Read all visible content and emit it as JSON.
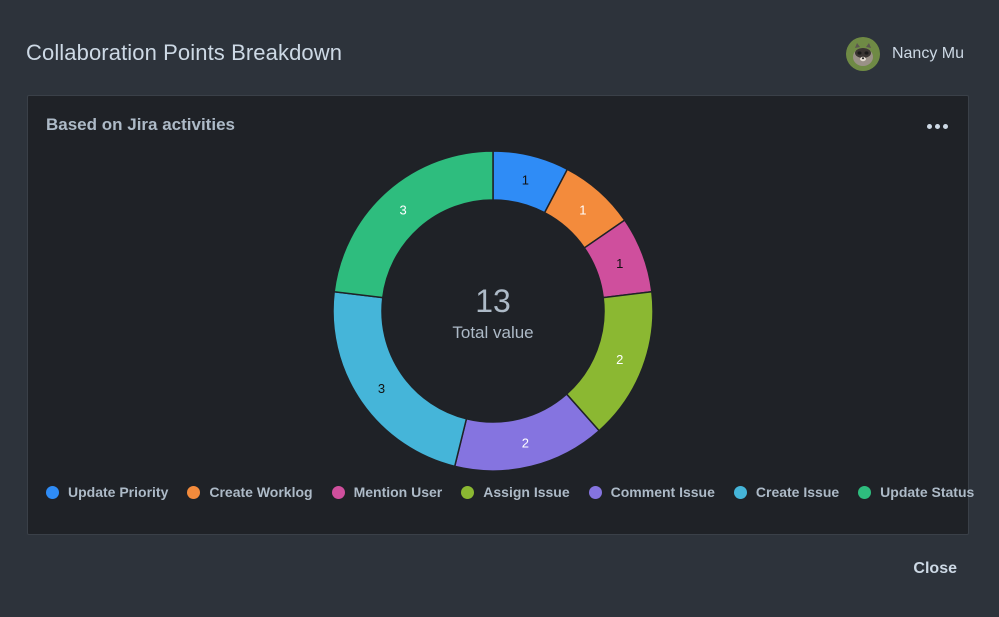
{
  "header": {
    "title": "Collaboration Points Breakdown",
    "user_name": "Nancy Mu",
    "avatar_icon": "raccoon-avatar"
  },
  "card": {
    "title": "Based on Jira activities",
    "menu_icon": "more-horizontal-icon"
  },
  "footer": {
    "close_label": "Close"
  },
  "chart_data": {
    "type": "pie",
    "variant": "donut",
    "center_value": "13",
    "center_label": "Total value",
    "legend_position": "bottom",
    "categories": [
      "Update Priority",
      "Create Worklog",
      "Mention User",
      "Assign Issue",
      "Comment Issue",
      "Create Issue",
      "Update Status"
    ],
    "values": [
      1,
      1,
      1,
      2,
      2,
      3,
      3
    ],
    "colors": [
      "#2f8cf6",
      "#f38b3c",
      "#cf4f9d",
      "#8bb832",
      "#8574e0",
      "#45b5d9",
      "#2ebd7e"
    ],
    "label_colors": [
      "#111111",
      "#ffffff",
      "#111111",
      "#ffffff",
      "#ffffff",
      "#111111",
      "#ffffff"
    ]
  }
}
